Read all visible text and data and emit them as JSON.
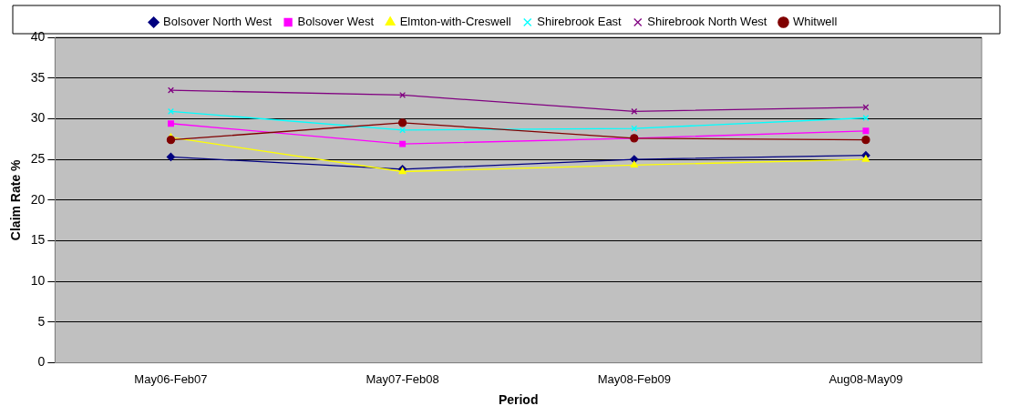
{
  "chart_data": {
    "type": "line",
    "xlabel": "Period",
    "ylabel": "Claim Rate %",
    "categories": [
      "May06-Feb07",
      "May07-Feb08",
      "May08-Feb09",
      "Aug08-May09"
    ],
    "ylim": [
      0,
      40
    ],
    "yticks": [
      0,
      5,
      10,
      15,
      20,
      25,
      30,
      35,
      40
    ],
    "grid": "y",
    "legend": "top",
    "series": [
      {
        "name": "Bolsover North West",
        "color": "#000080",
        "marker": "diamond",
        "values": [
          25.3,
          23.8,
          25.0,
          25.5
        ]
      },
      {
        "name": "Bolsover West",
        "color": "#ff00ff",
        "marker": "square",
        "values": [
          29.4,
          26.9,
          27.6,
          28.5
        ]
      },
      {
        "name": "Elmton-with-Creswell",
        "color": "#ffff00",
        "marker": "triangle",
        "values": [
          27.7,
          23.5,
          24.3,
          25.0
        ]
      },
      {
        "name": "Shirebrook East",
        "color": "#00ffff",
        "marker": "cross",
        "values": [
          30.9,
          28.6,
          28.8,
          30.1
        ]
      },
      {
        "name": "Shirebrook North West",
        "color": "#800080",
        "marker": "cross",
        "values": [
          33.5,
          32.9,
          30.9,
          31.4
        ]
      },
      {
        "name": "Whitwell",
        "color": "#800000",
        "marker": "circle",
        "values": [
          27.4,
          29.5,
          27.6,
          27.4
        ]
      }
    ]
  }
}
